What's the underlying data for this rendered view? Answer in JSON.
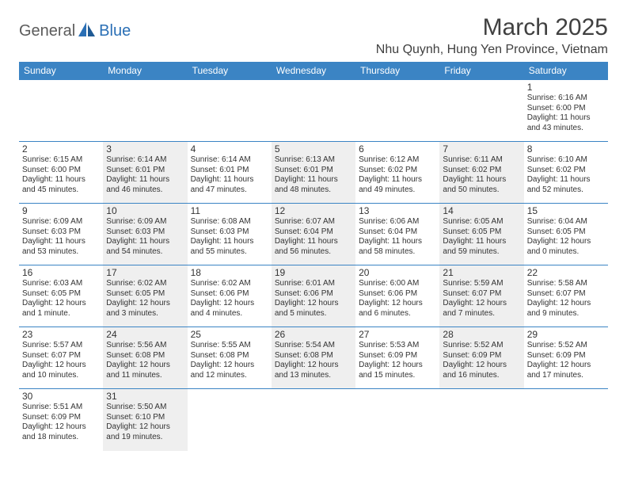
{
  "logo": {
    "general": "General",
    "blue": "Blue"
  },
  "title": "March 2025",
  "location": "Nhu Quynh, Hung Yen Province, Vietnam",
  "colors": {
    "header_bg": "#3b84c4",
    "header_text": "#ffffff",
    "border": "#3b84c4",
    "shaded_bg": "#efefef",
    "text": "#333333",
    "logo_gray": "#5b5b5b",
    "logo_blue": "#2a6fb5"
  },
  "dayHeaders": [
    "Sunday",
    "Monday",
    "Tuesday",
    "Wednesday",
    "Thursday",
    "Friday",
    "Saturday"
  ],
  "weeks": [
    [
      {
        "n": "",
        "sr": "",
        "ss": "",
        "dl": "",
        "shaded": false
      },
      {
        "n": "",
        "sr": "",
        "ss": "",
        "dl": "",
        "shaded": false
      },
      {
        "n": "",
        "sr": "",
        "ss": "",
        "dl": "",
        "shaded": false
      },
      {
        "n": "",
        "sr": "",
        "ss": "",
        "dl": "",
        "shaded": false
      },
      {
        "n": "",
        "sr": "",
        "ss": "",
        "dl": "",
        "shaded": false
      },
      {
        "n": "",
        "sr": "",
        "ss": "",
        "dl": "",
        "shaded": false
      },
      {
        "n": "1",
        "sr": "Sunrise: 6:16 AM",
        "ss": "Sunset: 6:00 PM",
        "dl": "Daylight: 11 hours and 43 minutes.",
        "shaded": false
      }
    ],
    [
      {
        "n": "2",
        "sr": "Sunrise: 6:15 AM",
        "ss": "Sunset: 6:00 PM",
        "dl": "Daylight: 11 hours and 45 minutes.",
        "shaded": false
      },
      {
        "n": "3",
        "sr": "Sunrise: 6:14 AM",
        "ss": "Sunset: 6:01 PM",
        "dl": "Daylight: 11 hours and 46 minutes.",
        "shaded": true
      },
      {
        "n": "4",
        "sr": "Sunrise: 6:14 AM",
        "ss": "Sunset: 6:01 PM",
        "dl": "Daylight: 11 hours and 47 minutes.",
        "shaded": false
      },
      {
        "n": "5",
        "sr": "Sunrise: 6:13 AM",
        "ss": "Sunset: 6:01 PM",
        "dl": "Daylight: 11 hours and 48 minutes.",
        "shaded": true
      },
      {
        "n": "6",
        "sr": "Sunrise: 6:12 AM",
        "ss": "Sunset: 6:02 PM",
        "dl": "Daylight: 11 hours and 49 minutes.",
        "shaded": false
      },
      {
        "n": "7",
        "sr": "Sunrise: 6:11 AM",
        "ss": "Sunset: 6:02 PM",
        "dl": "Daylight: 11 hours and 50 minutes.",
        "shaded": true
      },
      {
        "n": "8",
        "sr": "Sunrise: 6:10 AM",
        "ss": "Sunset: 6:02 PM",
        "dl": "Daylight: 11 hours and 52 minutes.",
        "shaded": false
      }
    ],
    [
      {
        "n": "9",
        "sr": "Sunrise: 6:09 AM",
        "ss": "Sunset: 6:03 PM",
        "dl": "Daylight: 11 hours and 53 minutes.",
        "shaded": false
      },
      {
        "n": "10",
        "sr": "Sunrise: 6:09 AM",
        "ss": "Sunset: 6:03 PM",
        "dl": "Daylight: 11 hours and 54 minutes.",
        "shaded": true
      },
      {
        "n": "11",
        "sr": "Sunrise: 6:08 AM",
        "ss": "Sunset: 6:03 PM",
        "dl": "Daylight: 11 hours and 55 minutes.",
        "shaded": false
      },
      {
        "n": "12",
        "sr": "Sunrise: 6:07 AM",
        "ss": "Sunset: 6:04 PM",
        "dl": "Daylight: 11 hours and 56 minutes.",
        "shaded": true
      },
      {
        "n": "13",
        "sr": "Sunrise: 6:06 AM",
        "ss": "Sunset: 6:04 PM",
        "dl": "Daylight: 11 hours and 58 minutes.",
        "shaded": false
      },
      {
        "n": "14",
        "sr": "Sunrise: 6:05 AM",
        "ss": "Sunset: 6:05 PM",
        "dl": "Daylight: 11 hours and 59 minutes.",
        "shaded": true
      },
      {
        "n": "15",
        "sr": "Sunrise: 6:04 AM",
        "ss": "Sunset: 6:05 PM",
        "dl": "Daylight: 12 hours and 0 minutes.",
        "shaded": false
      }
    ],
    [
      {
        "n": "16",
        "sr": "Sunrise: 6:03 AM",
        "ss": "Sunset: 6:05 PM",
        "dl": "Daylight: 12 hours and 1 minute.",
        "shaded": false
      },
      {
        "n": "17",
        "sr": "Sunrise: 6:02 AM",
        "ss": "Sunset: 6:05 PM",
        "dl": "Daylight: 12 hours and 3 minutes.",
        "shaded": true
      },
      {
        "n": "18",
        "sr": "Sunrise: 6:02 AM",
        "ss": "Sunset: 6:06 PM",
        "dl": "Daylight: 12 hours and 4 minutes.",
        "shaded": false
      },
      {
        "n": "19",
        "sr": "Sunrise: 6:01 AM",
        "ss": "Sunset: 6:06 PM",
        "dl": "Daylight: 12 hours and 5 minutes.",
        "shaded": true
      },
      {
        "n": "20",
        "sr": "Sunrise: 6:00 AM",
        "ss": "Sunset: 6:06 PM",
        "dl": "Daylight: 12 hours and 6 minutes.",
        "shaded": false
      },
      {
        "n": "21",
        "sr": "Sunrise: 5:59 AM",
        "ss": "Sunset: 6:07 PM",
        "dl": "Daylight: 12 hours and 7 minutes.",
        "shaded": true
      },
      {
        "n": "22",
        "sr": "Sunrise: 5:58 AM",
        "ss": "Sunset: 6:07 PM",
        "dl": "Daylight: 12 hours and 9 minutes.",
        "shaded": false
      }
    ],
    [
      {
        "n": "23",
        "sr": "Sunrise: 5:57 AM",
        "ss": "Sunset: 6:07 PM",
        "dl": "Daylight: 12 hours and 10 minutes.",
        "shaded": false
      },
      {
        "n": "24",
        "sr": "Sunrise: 5:56 AM",
        "ss": "Sunset: 6:08 PM",
        "dl": "Daylight: 12 hours and 11 minutes.",
        "shaded": true
      },
      {
        "n": "25",
        "sr": "Sunrise: 5:55 AM",
        "ss": "Sunset: 6:08 PM",
        "dl": "Daylight: 12 hours and 12 minutes.",
        "shaded": false
      },
      {
        "n": "26",
        "sr": "Sunrise: 5:54 AM",
        "ss": "Sunset: 6:08 PM",
        "dl": "Daylight: 12 hours and 13 minutes.",
        "shaded": true
      },
      {
        "n": "27",
        "sr": "Sunrise: 5:53 AM",
        "ss": "Sunset: 6:09 PM",
        "dl": "Daylight: 12 hours and 15 minutes.",
        "shaded": false
      },
      {
        "n": "28",
        "sr": "Sunrise: 5:52 AM",
        "ss": "Sunset: 6:09 PM",
        "dl": "Daylight: 12 hours and 16 minutes.",
        "shaded": true
      },
      {
        "n": "29",
        "sr": "Sunrise: 5:52 AM",
        "ss": "Sunset: 6:09 PM",
        "dl": "Daylight: 12 hours and 17 minutes.",
        "shaded": false
      }
    ],
    [
      {
        "n": "30",
        "sr": "Sunrise: 5:51 AM",
        "ss": "Sunset: 6:09 PM",
        "dl": "Daylight: 12 hours and 18 minutes.",
        "shaded": false
      },
      {
        "n": "31",
        "sr": "Sunrise: 5:50 AM",
        "ss": "Sunset: 6:10 PM",
        "dl": "Daylight: 12 hours and 19 minutes.",
        "shaded": true
      },
      {
        "n": "",
        "sr": "",
        "ss": "",
        "dl": "",
        "shaded": false
      },
      {
        "n": "",
        "sr": "",
        "ss": "",
        "dl": "",
        "shaded": false
      },
      {
        "n": "",
        "sr": "",
        "ss": "",
        "dl": "",
        "shaded": false
      },
      {
        "n": "",
        "sr": "",
        "ss": "",
        "dl": "",
        "shaded": false
      },
      {
        "n": "",
        "sr": "",
        "ss": "",
        "dl": "",
        "shaded": false
      }
    ]
  ]
}
